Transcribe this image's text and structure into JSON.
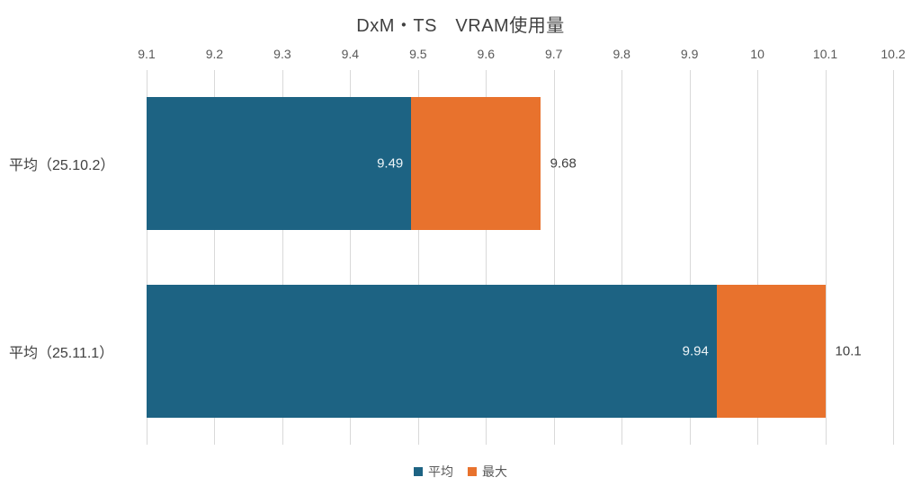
{
  "chart_data": {
    "type": "bar",
    "orientation": "horizontal",
    "stacked": true,
    "title": "DxM・TS　VRAM使用量",
    "title_color": "#404040",
    "background": "#FFFFFF",
    "categories": [
      "平均（25.10.2）",
      "平均（25.11.1）"
    ],
    "category_label_color": "#404040",
    "series": [
      {
        "name": "平均",
        "color": "#1D6383",
        "values": [
          9.49,
          9.94
        ],
        "labels": [
          "9.49",
          "9.94"
        ],
        "label_placement": "inside-end",
        "label_color": "#EDF4F7"
      },
      {
        "name": "最大",
        "color": "#E8722D",
        "values": [
          9.68,
          10.1
        ],
        "labels": [
          "9.68",
          "10.1"
        ],
        "label_placement": "outside-end",
        "label_color": "#404040",
        "segment_note": "orange segment spans from 平均 value to 最大 value"
      }
    ],
    "x_axis": {
      "position": "top",
      "min": 9.1,
      "max": 10.2,
      "tick_step": 0.1,
      "ticks": [
        "9.1",
        "9.2",
        "9.3",
        "9.4",
        "9.5",
        "9.6",
        "9.7",
        "9.8",
        "9.9",
        "10",
        "10.1",
        "10.2"
      ],
      "tick_color": "#595959"
    },
    "grid": {
      "show": true,
      "color": "#D9D9D9"
    },
    "legend": {
      "position": "bottom",
      "entries": [
        "平均",
        "最大"
      ]
    }
  }
}
